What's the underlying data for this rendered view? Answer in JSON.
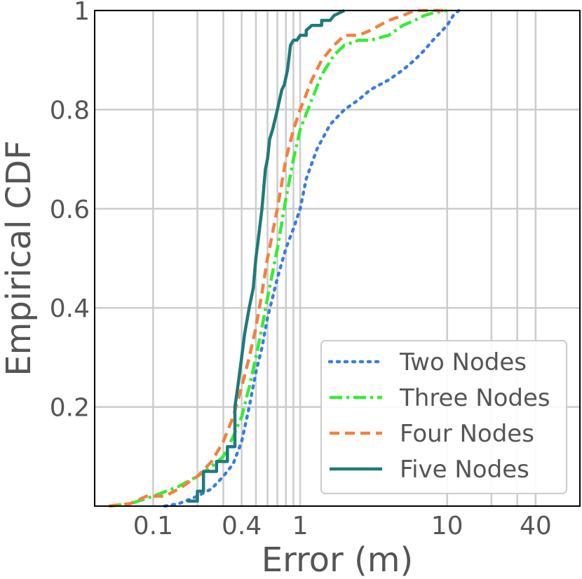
{
  "chart_data": {
    "type": "line",
    "xlabel": "Error (m)",
    "ylabel": "Empirical CDF",
    "xscale": "log",
    "xlim": [
      0.04,
      80
    ],
    "ylim": [
      0,
      1
    ],
    "grid": true,
    "xticks": [
      {
        "v": 0.1,
        "label": "0.1"
      },
      {
        "v": 0.4,
        "label": "0.4"
      },
      {
        "v": 1,
        "label": "1"
      },
      {
        "v": 10,
        "label": "10"
      },
      {
        "v": 40,
        "label": "40"
      }
    ],
    "yticks": [
      {
        "v": 0.2,
        "label": "0.2"
      },
      {
        "v": 0.4,
        "label": "0.4"
      },
      {
        "v": 0.6,
        "label": "0.6"
      },
      {
        "v": 0.8,
        "label": "0.8"
      },
      {
        "v": 1.0,
        "label": "1"
      }
    ],
    "x_minor_gridlines": [
      0.2,
      0.3,
      0.5,
      0.6,
      0.7,
      0.8,
      0.9,
      20,
      30
    ],
    "legend": {
      "placement": "lower-right"
    },
    "series": [
      {
        "name": "Two Nodes",
        "color": "#3b7ddd",
        "style": "dotted",
        "x": [
          0.12,
          0.15,
          0.2,
          0.25,
          0.3,
          0.35,
          0.4,
          0.45,
          0.5,
          0.55,
          0.6,
          0.7,
          0.8,
          0.9,
          1.0,
          1.1,
          1.3,
          1.6,
          2.0,
          2.5,
          3.0,
          4.0,
          5.0,
          6.0,
          7.0,
          8.0,
          10.0,
          11.0,
          12.0
        ],
        "y": [
          0.0,
          0.005,
          0.02,
          0.035,
          0.06,
          0.085,
          0.13,
          0.2,
          0.27,
          0.32,
          0.38,
          0.46,
          0.52,
          0.56,
          0.6,
          0.66,
          0.72,
          0.77,
          0.8,
          0.82,
          0.84,
          0.86,
          0.88,
          0.9,
          0.92,
          0.94,
          0.97,
          0.99,
          1.0
        ]
      },
      {
        "name": "Three Nodes",
        "color": "#33ee33",
        "style": "dashdot",
        "x": [
          0.05,
          0.07,
          0.1,
          0.15,
          0.2,
          0.25,
          0.3,
          0.35,
          0.4,
          0.45,
          0.5,
          0.55,
          0.6,
          0.7,
          0.8,
          0.9,
          1.0,
          1.2,
          1.4,
          1.7,
          2.0,
          2.5,
          3.0,
          4.0,
          5.0,
          6.0,
          7.0,
          8.0,
          10.0
        ],
        "y": [
          0.0,
          0.005,
          0.02,
          0.04,
          0.06,
          0.08,
          0.1,
          0.14,
          0.18,
          0.24,
          0.3,
          0.36,
          0.42,
          0.52,
          0.62,
          0.7,
          0.76,
          0.82,
          0.87,
          0.91,
          0.93,
          0.94,
          0.94,
          0.95,
          0.97,
          0.98,
          0.99,
          0.995,
          1.0
        ]
      },
      {
        "name": "Four Nodes",
        "color": "#f4813d",
        "style": "dashed",
        "x": [
          0.05,
          0.07,
          0.09,
          0.12,
          0.15,
          0.2,
          0.25,
          0.3,
          0.35,
          0.4,
          0.45,
          0.5,
          0.55,
          0.6,
          0.7,
          0.8,
          0.9,
          1.0,
          1.2,
          1.4,
          1.7,
          2.0,
          2.5,
          3.0,
          4.0,
          5.0,
          6.0,
          8.0,
          10.0
        ],
        "y": [
          0.0,
          0.005,
          0.02,
          0.02,
          0.035,
          0.06,
          0.09,
          0.13,
          0.18,
          0.24,
          0.3,
          0.36,
          0.43,
          0.5,
          0.6,
          0.7,
          0.76,
          0.8,
          0.86,
          0.9,
          0.93,
          0.95,
          0.95,
          0.96,
          0.98,
          0.99,
          1.0,
          1.0,
          1.0
        ]
      },
      {
        "name": "Five Nodes",
        "color": "#1f7a7a",
        "style": "solid",
        "x": [
          0.17,
          0.2,
          0.2,
          0.22,
          0.22,
          0.27,
          0.27,
          0.32,
          0.32,
          0.36,
          0.36,
          0.38,
          0.4,
          0.42,
          0.45,
          0.48,
          0.5,
          0.52,
          0.55,
          0.58,
          0.6,
          0.62,
          0.65,
          0.7,
          0.75,
          0.78,
          0.82,
          0.86,
          0.9,
          0.95,
          1.0,
          1.1,
          1.1,
          1.2,
          1.4,
          1.4,
          1.6,
          1.7,
          1.7,
          2.0,
          2.0
        ],
        "y": [
          0.01,
          0.01,
          0.03,
          0.03,
          0.07,
          0.07,
          0.09,
          0.09,
          0.12,
          0.12,
          0.2,
          0.25,
          0.3,
          0.35,
          0.4,
          0.44,
          0.5,
          0.54,
          0.6,
          0.68,
          0.7,
          0.74,
          0.76,
          0.8,
          0.84,
          0.85,
          0.88,
          0.93,
          0.94,
          0.94,
          0.95,
          0.95,
          0.96,
          0.97,
          0.97,
          0.98,
          0.98,
          0.99,
          0.99,
          1.0,
          1.0
        ]
      }
    ]
  }
}
